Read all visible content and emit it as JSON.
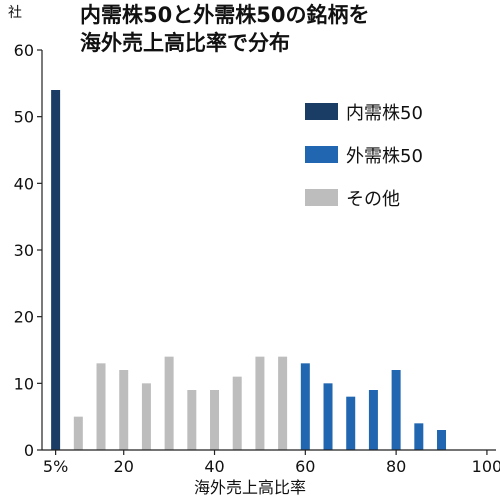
{
  "chart_data": {
    "type": "bar",
    "title": [
      "内需株50と外需株50の銘柄を",
      "海外売上高比率で分布"
    ],
    "ylabel": "社",
    "xlabel": "海外売上高比率",
    "ylim": [
      0,
      60
    ],
    "yticks": [
      0,
      10,
      20,
      30,
      40,
      50,
      60
    ],
    "xlim": [
      2,
      102
    ],
    "xticks": [
      {
        "value": 5,
        "label": "5%"
      },
      {
        "value": 20,
        "label": "20"
      },
      {
        "value": 40,
        "label": "40"
      },
      {
        "value": 60,
        "label": "60"
      },
      {
        "value": 80,
        "label": "80"
      },
      {
        "value": 100,
        "label": "100"
      }
    ],
    "grid": false,
    "legend_position": "top-right",
    "series": [
      {
        "name": "内需株50",
        "color": "#1a3d66",
        "x": [
          5
        ],
        "values": [
          54
        ]
      },
      {
        "name": "外需株50",
        "color": "#2166b0",
        "x": [
          60,
          65,
          70,
          75,
          80,
          85,
          90,
          95,
          100
        ],
        "values": [
          13,
          10,
          8,
          9,
          12,
          4,
          3,
          0,
          0
        ]
      },
      {
        "name": "その他",
        "color": "#bdbdbd",
        "x": [
          10,
          15,
          20,
          25,
          30,
          35,
          40,
          45,
          50,
          55
        ],
        "values": [
          5,
          13,
          12,
          10,
          14,
          9,
          9,
          11,
          14,
          14
        ]
      }
    ]
  }
}
